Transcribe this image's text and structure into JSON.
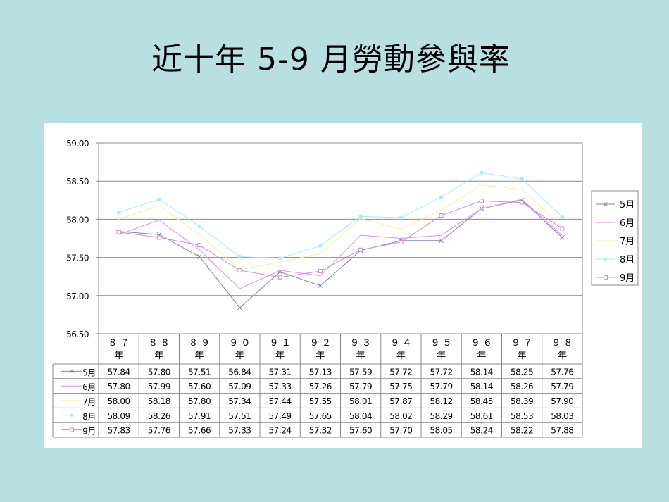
{
  "slide": {
    "title": "近十年 5-9 月勞動參與率"
  },
  "chart_data": {
    "type": "line",
    "title": "",
    "xlabel": "",
    "ylabel": "",
    "ylim": [
      56.5,
      59.0
    ],
    "yticks": [
      "59.00",
      "58.50",
      "58.00",
      "57.50",
      "57.00",
      "56.50"
    ],
    "ytick_values": [
      59.0,
      58.5,
      58.0,
      57.5,
      57.0,
      56.5
    ],
    "grid": true,
    "legend": "right",
    "categories": [
      "８７",
      "８８",
      "８９",
      "９０",
      "９１",
      "９２",
      "９３",
      "９４",
      "９５",
      "９６",
      "９７",
      "９８"
    ],
    "category_suffix": "年",
    "series": [
      {
        "name": "5月",
        "color": "#8080b0",
        "marker": "x",
        "values": [
          57.84,
          57.8,
          57.51,
          56.84,
          57.31,
          57.13,
          57.59,
          57.72,
          57.72,
          58.14,
          58.25,
          57.76
        ],
        "labels": [
          "57.84",
          "57.80",
          "57.51",
          "56.84",
          "57.31",
          "57.13",
          "57.59",
          "57.72",
          "57.72",
          "58.14",
          "58.25",
          "57.76"
        ]
      },
      {
        "name": "6月",
        "color": "#e090e8",
        "marker": "none",
        "values": [
          57.8,
          57.99,
          57.6,
          57.09,
          57.33,
          57.26,
          57.79,
          57.75,
          57.79,
          58.14,
          58.26,
          57.79
        ],
        "labels": [
          "57.80",
          "57.99",
          "57.60",
          "57.09",
          "57.33",
          "57.26",
          "57.79",
          "57.75",
          "57.79",
          "58.14",
          "58.26",
          "57.79"
        ]
      },
      {
        "name": "7月",
        "color": "#f2f2a0",
        "marker": "none",
        "values": [
          58.0,
          58.18,
          57.8,
          57.34,
          57.44,
          57.55,
          58.01,
          57.87,
          58.12,
          58.45,
          58.39,
          57.9
        ],
        "labels": [
          "58.00",
          "58.18",
          "57.80",
          "57.34",
          "57.44",
          "57.55",
          "58.01",
          "57.87",
          "58.12",
          "58.45",
          "58.39",
          "57.90"
        ]
      },
      {
        "name": "8月",
        "color": "#a8ecf4",
        "marker": "star",
        "values": [
          58.09,
          58.26,
          57.91,
          57.51,
          57.49,
          57.65,
          58.04,
          58.02,
          58.29,
          58.61,
          58.53,
          58.03
        ],
        "labels": [
          "58.09",
          "58.26",
          "57.91",
          "57.51",
          "57.49",
          "57.65",
          "58.04",
          "58.02",
          "58.29",
          "58.61",
          "58.53",
          "58.03"
        ]
      },
      {
        "name": "9月",
        "color": "#c890c8",
        "marker": "square",
        "values": [
          57.83,
          57.76,
          57.66,
          57.33,
          57.24,
          57.32,
          57.6,
          57.7,
          58.05,
          58.24,
          58.22,
          57.88
        ],
        "labels": [
          "57.83",
          "57.76",
          "57.66",
          "57.33",
          "57.24",
          "57.32",
          "57.60",
          "57.70",
          "58.05",
          "58.24",
          "58.22",
          "57.88"
        ]
      }
    ]
  }
}
